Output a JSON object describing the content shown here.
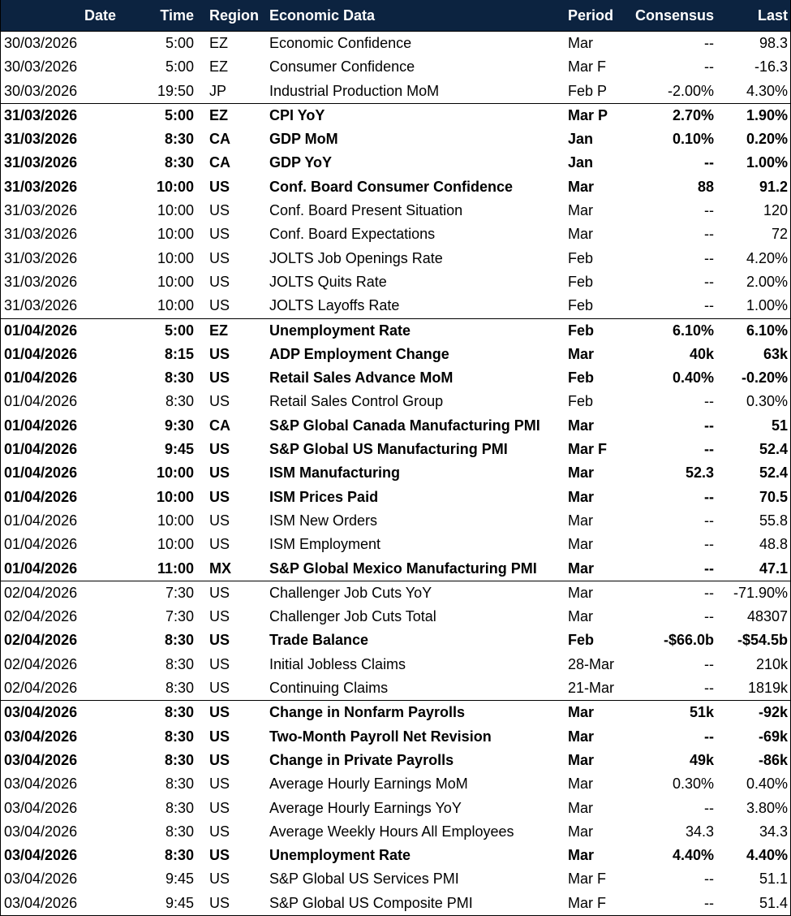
{
  "header": {
    "date": "Date",
    "time": "Time",
    "region": "Region",
    "data": "Economic Data",
    "period": "Period",
    "consensus": "Consensus",
    "last": "Last"
  },
  "rows": [
    {
      "date": "30/03/2026",
      "time": "5:00",
      "region": "EZ",
      "data": "Economic Confidence",
      "period": "Mar",
      "consensus": "--",
      "last": "98.3",
      "bold": false,
      "group_start": false
    },
    {
      "date": "30/03/2026",
      "time": "5:00",
      "region": "EZ",
      "data": "Consumer Confidence",
      "period": "Mar F",
      "consensus": "--",
      "last": "-16.3",
      "bold": false,
      "group_start": false
    },
    {
      "date": "30/03/2026",
      "time": "19:50",
      "region": "JP",
      "data": "Industrial Production MoM",
      "period": "Feb P",
      "consensus": "-2.00%",
      "last": "4.30%",
      "bold": false,
      "group_start": false
    },
    {
      "date": "31/03/2026",
      "time": "5:00",
      "region": "EZ",
      "data": "CPI YoY",
      "period": "Mar P",
      "consensus": "2.70%",
      "last": "1.90%",
      "bold": true,
      "group_start": true
    },
    {
      "date": "31/03/2026",
      "time": "8:30",
      "region": "CA",
      "data": "GDP MoM",
      "period": "Jan",
      "consensus": "0.10%",
      "last": "0.20%",
      "bold": true,
      "group_start": false
    },
    {
      "date": "31/03/2026",
      "time": "8:30",
      "region": "CA",
      "data": "GDP YoY",
      "period": "Jan",
      "consensus": "--",
      "last": "1.00%",
      "bold": true,
      "group_start": false
    },
    {
      "date": "31/03/2026",
      "time": "10:00",
      "region": "US",
      "data": "Conf. Board Consumer Confidence",
      "period": "Mar",
      "consensus": "88",
      "last": "91.2",
      "bold": true,
      "group_start": false
    },
    {
      "date": "31/03/2026",
      "time": "10:00",
      "region": "US",
      "data": "Conf. Board Present Situation",
      "period": "Mar",
      "consensus": "--",
      "last": "120",
      "bold": false,
      "group_start": false
    },
    {
      "date": "31/03/2026",
      "time": "10:00",
      "region": "US",
      "data": "Conf. Board Expectations",
      "period": "Mar",
      "consensus": "--",
      "last": "72",
      "bold": false,
      "group_start": false
    },
    {
      "date": "31/03/2026",
      "time": "10:00",
      "region": "US",
      "data": "JOLTS Job Openings Rate",
      "period": "Feb",
      "consensus": "--",
      "last": "4.20%",
      "bold": false,
      "group_start": false
    },
    {
      "date": "31/03/2026",
      "time": "10:00",
      "region": "US",
      "data": "JOLTS Quits Rate",
      "period": "Feb",
      "consensus": "--",
      "last": "2.00%",
      "bold": false,
      "group_start": false
    },
    {
      "date": "31/03/2026",
      "time": "10:00",
      "region": "US",
      "data": "JOLTS Layoffs Rate",
      "period": "Feb",
      "consensus": "--",
      "last": "1.00%",
      "bold": false,
      "group_start": false
    },
    {
      "date": "01/04/2026",
      "time": "5:00",
      "region": "EZ",
      "data": "Unemployment Rate",
      "period": "Feb",
      "consensus": "6.10%",
      "last": "6.10%",
      "bold": true,
      "group_start": true
    },
    {
      "date": "01/04/2026",
      "time": "8:15",
      "region": "US",
      "data": "ADP Employment Change",
      "period": "Mar",
      "consensus": "40k",
      "last": "63k",
      "bold": true,
      "group_start": false
    },
    {
      "date": "01/04/2026",
      "time": "8:30",
      "region": "US",
      "data": "Retail Sales Advance MoM",
      "period": "Feb",
      "consensus": "0.40%",
      "last": "-0.20%",
      "bold": true,
      "group_start": false
    },
    {
      "date": "01/04/2026",
      "time": "8:30",
      "region": "US",
      "data": "Retail Sales Control Group",
      "period": "Feb",
      "consensus": "--",
      "last": "0.30%",
      "bold": false,
      "group_start": false
    },
    {
      "date": "01/04/2026",
      "time": "9:30",
      "region": "CA",
      "data": "S&P Global Canada Manufacturing PMI",
      "period": "Mar",
      "consensus": "--",
      "last": "51",
      "bold": true,
      "group_start": false
    },
    {
      "date": "01/04/2026",
      "time": "9:45",
      "region": "US",
      "data": "S&P Global US Manufacturing PMI",
      "period": "Mar F",
      "consensus": "--",
      "last": "52.4",
      "bold": true,
      "group_start": false
    },
    {
      "date": "01/04/2026",
      "time": "10:00",
      "region": "US",
      "data": "ISM Manufacturing",
      "period": "Mar",
      "consensus": "52.3",
      "last": "52.4",
      "bold": true,
      "group_start": false
    },
    {
      "date": "01/04/2026",
      "time": "10:00",
      "region": "US",
      "data": "ISM Prices Paid",
      "period": "Mar",
      "consensus": "--",
      "last": "70.5",
      "bold": true,
      "group_start": false
    },
    {
      "date": "01/04/2026",
      "time": "10:00",
      "region": "US",
      "data": "ISM New Orders",
      "period": "Mar",
      "consensus": "--",
      "last": "55.8",
      "bold": false,
      "group_start": false
    },
    {
      "date": "01/04/2026",
      "time": "10:00",
      "region": "US",
      "data": "ISM Employment",
      "period": "Mar",
      "consensus": "--",
      "last": "48.8",
      "bold": false,
      "group_start": false
    },
    {
      "date": "01/04/2026",
      "time": "11:00",
      "region": "MX",
      "data": "S&P Global Mexico Manufacturing PMI",
      "period": "Mar",
      "consensus": "--",
      "last": "47.1",
      "bold": true,
      "group_start": false
    },
    {
      "date": "02/04/2026",
      "time": "7:30",
      "region": "US",
      "data": "Challenger Job Cuts YoY",
      "period": "Mar",
      "consensus": "--",
      "last": "-71.90%",
      "bold": false,
      "group_start": true
    },
    {
      "date": "02/04/2026",
      "time": "7:30",
      "region": "US",
      "data": "Challenger Job Cuts Total",
      "period": "Mar",
      "consensus": "--",
      "last": "48307",
      "bold": false,
      "group_start": false
    },
    {
      "date": "02/04/2026",
      "time": "8:30",
      "region": "US",
      "data": "Trade Balance",
      "period": "Feb",
      "consensus": "-$66.0b",
      "last": "-$54.5b",
      "bold": true,
      "group_start": false
    },
    {
      "date": "02/04/2026",
      "time": "8:30",
      "region": "US",
      "data": "Initial Jobless Claims",
      "period": "28-Mar",
      "consensus": "--",
      "last": "210k",
      "bold": false,
      "group_start": false
    },
    {
      "date": "02/04/2026",
      "time": "8:30",
      "region": "US",
      "data": "Continuing Claims",
      "period": "21-Mar",
      "consensus": "--",
      "last": "1819k",
      "bold": false,
      "group_start": false
    },
    {
      "date": "03/04/2026",
      "time": "8:30",
      "region": "US",
      "data": "Change in Nonfarm Payrolls",
      "period": "Mar",
      "consensus": "51k",
      "last": "-92k",
      "bold": true,
      "group_start": true
    },
    {
      "date": "03/04/2026",
      "time": "8:30",
      "region": "US",
      "data": "Two-Month Payroll Net Revision",
      "period": "Mar",
      "consensus": "--",
      "last": "-69k",
      "bold": true,
      "group_start": false
    },
    {
      "date": "03/04/2026",
      "time": "8:30",
      "region": "US",
      "data": "Change in Private Payrolls",
      "period": "Mar",
      "consensus": "49k",
      "last": "-86k",
      "bold": true,
      "group_start": false
    },
    {
      "date": "03/04/2026",
      "time": "8:30",
      "region": "US",
      "data": "Average Hourly Earnings MoM",
      "period": "Mar",
      "consensus": "0.30%",
      "last": "0.40%",
      "bold": false,
      "group_start": false
    },
    {
      "date": "03/04/2026",
      "time": "8:30",
      "region": "US",
      "data": "Average Hourly Earnings YoY",
      "period": "Mar",
      "consensus": "--",
      "last": "3.80%",
      "bold": false,
      "group_start": false
    },
    {
      "date": "03/04/2026",
      "time": "8:30",
      "region": "US",
      "data": "Average Weekly Hours All Employees",
      "period": "Mar",
      "consensus": "34.3",
      "last": "34.3",
      "bold": false,
      "group_start": false
    },
    {
      "date": "03/04/2026",
      "time": "8:30",
      "region": "US",
      "data": "Unemployment Rate",
      "period": "Mar",
      "consensus": "4.40%",
      "last": "4.40%",
      "bold": true,
      "group_start": false
    },
    {
      "date": "03/04/2026",
      "time": "9:45",
      "region": "US",
      "data": "S&P Global US Services PMI",
      "period": "Mar F",
      "consensus": "--",
      "last": "51.1",
      "bold": false,
      "group_start": false
    },
    {
      "date": "03/04/2026",
      "time": "9:45",
      "region": "US",
      "data": "S&P Global US Composite PMI",
      "period": "Mar F",
      "consensus": "--",
      "last": "51.4",
      "bold": false,
      "group_start": false
    }
  ],
  "colors": {
    "header_bg": "#0c2340",
    "header_text": "#ffffff"
  }
}
